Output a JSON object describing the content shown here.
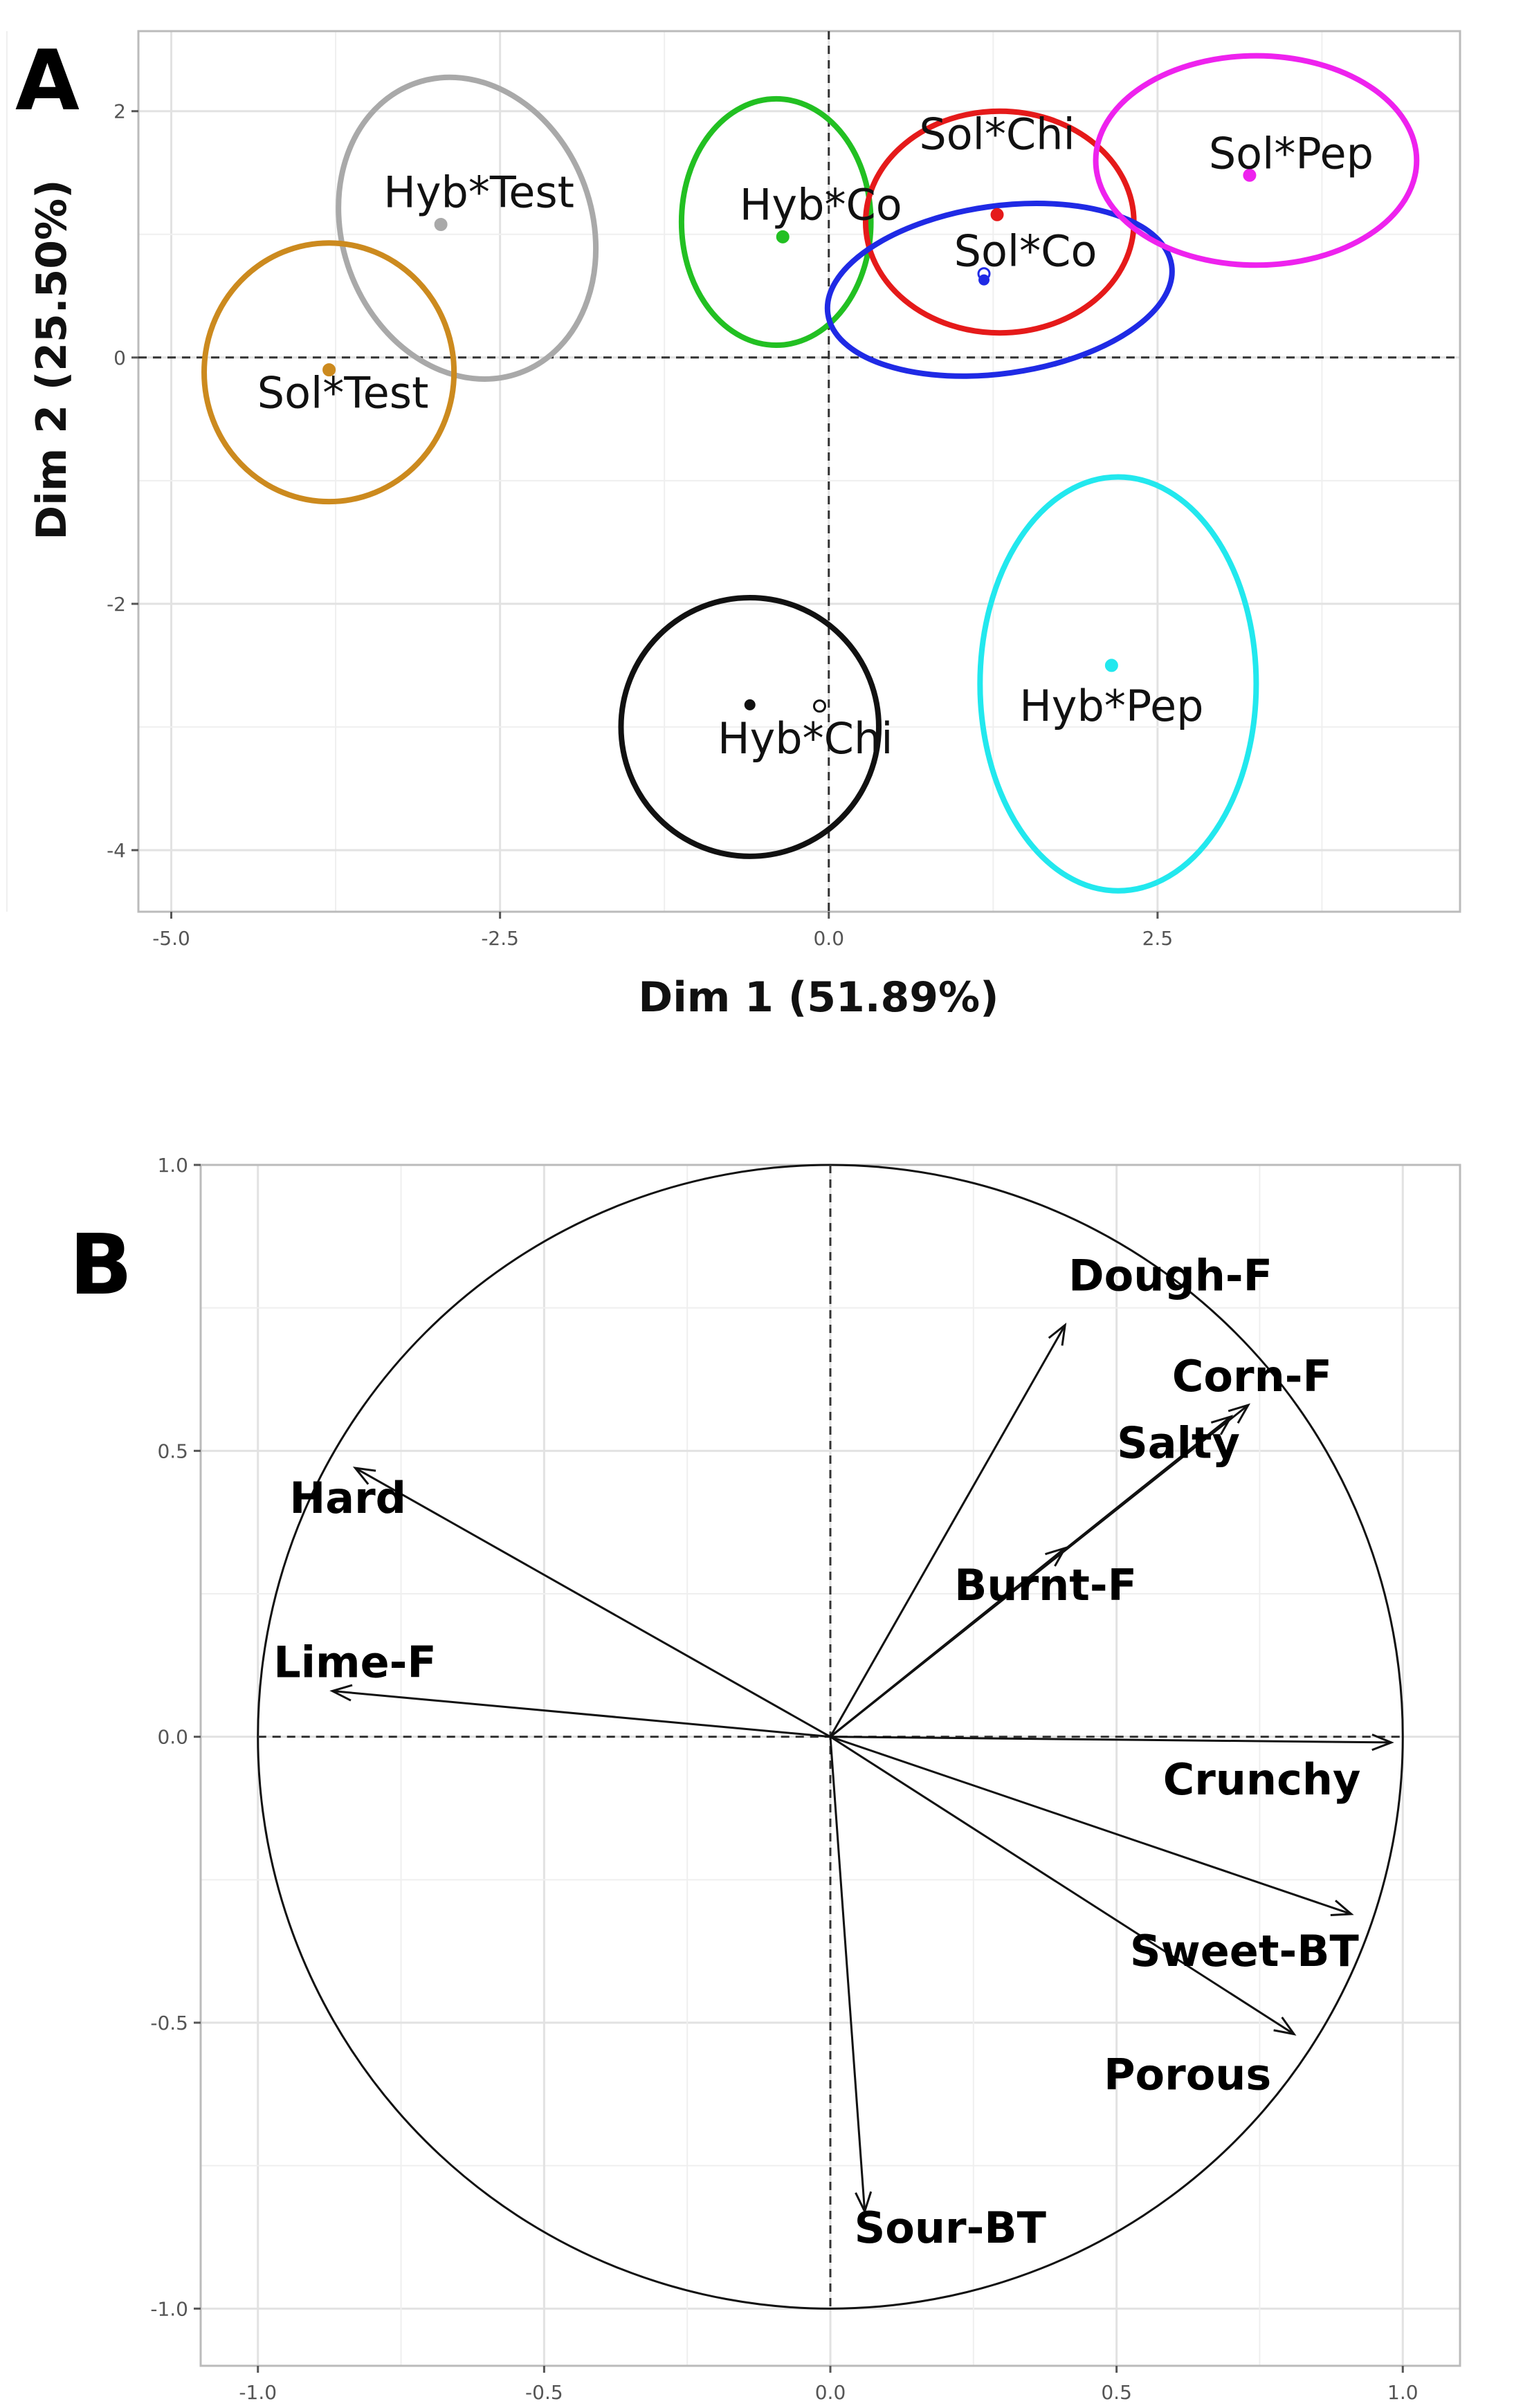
{
  "chart_data": [
    {
      "panel": "A",
      "type": "scatter",
      "title": "",
      "xlabel": "Dim 1 (51.89%)",
      "ylabel": "Dim 2 (25.50%)",
      "xlim": [
        -5.25,
        4.8
      ],
      "ylim": [
        -4.5,
        2.65
      ],
      "xticks": [
        -5.0,
        -2.5,
        0.0,
        2.5
      ],
      "xtick_labels": [
        "-5.0",
        "-2.5",
        "0.0",
        "2.5"
      ],
      "yticks": [
        -4,
        -2,
        0,
        2
      ],
      "ytick_labels": [
        "-4",
        "-2",
        "0",
        "2"
      ],
      "grid": true,
      "reference_lines": {
        "x": 0,
        "y": 0
      },
      "groups": [
        {
          "name": "Hyb*Test",
          "color": "#A9A9A9",
          "x": -2.95,
          "y": 1.08,
          "open_x": -2.95,
          "open_y": 1.08,
          "ellipse": {
            "cx": -2.75,
            "cy": 1.05,
            "rx": 0.95,
            "ry": 1.25,
            "angle": 20
          }
        },
        {
          "name": "Sol*Test",
          "color": "#CC8A1E",
          "x": -3.8,
          "y": -0.1,
          "open_x": -3.8,
          "open_y": -0.1,
          "ellipse": {
            "cx": -3.8,
            "cy": -0.12,
            "rx": 0.95,
            "ry": 1.05,
            "angle": 0
          }
        },
        {
          "name": "Hyb*Co",
          "color": "#22C022",
          "x": -0.35,
          "y": 0.98,
          "open_x": -0.35,
          "open_y": 0.98,
          "ellipse": {
            "cx": -0.4,
            "cy": 1.1,
            "rx": 0.72,
            "ry": 1.0,
            "angle": 0
          }
        },
        {
          "name": "Sol*Chi",
          "color": "#E51A1A",
          "x": 1.28,
          "y": 1.16,
          "open_x": 1.28,
          "open_y": 1.16,
          "ellipse": {
            "cx": 1.3,
            "cy": 1.1,
            "rx": 1.02,
            "ry": 0.9,
            "angle": 0
          }
        },
        {
          "name": "Sol*Co",
          "color": "#1F2AE5",
          "x": 1.18,
          "y": 0.63,
          "open_x": 1.18,
          "open_y": 0.68,
          "ellipse": {
            "cx": 1.3,
            "cy": 0.55,
            "rx": 1.32,
            "ry": 0.68,
            "angle": 8
          }
        },
        {
          "name": "Sol*Pep",
          "color": "#EE22EE",
          "x": 3.2,
          "y": 1.48,
          "open_x": 3.2,
          "open_y": 1.48,
          "ellipse": {
            "cx": 3.25,
            "cy": 1.6,
            "rx": 1.22,
            "ry": 0.85,
            "angle": 0
          }
        },
        {
          "name": "Hyb*Chi",
          "color": "#111111",
          "x": -0.6,
          "y": -2.82,
          "open_x": -0.07,
          "open_y": -2.83,
          "ellipse": {
            "cx": -0.6,
            "cy": -3.0,
            "rx": 0.98,
            "ry": 1.05,
            "angle": 0
          }
        },
        {
          "name": "Hyb*Pep",
          "color": "#22E8EE",
          "x": 2.15,
          "y": -2.5,
          "open_x": 2.15,
          "open_y": -2.5,
          "ellipse": {
            "cx": 2.2,
            "cy": -2.65,
            "rx": 1.05,
            "ry": 1.68,
            "angle": 0
          }
        }
      ]
    },
    {
      "panel": "B",
      "type": "scatter",
      "title": "",
      "xlabel": "",
      "ylabel": "",
      "xlim": [
        -1.1,
        1.1
      ],
      "ylim": [
        -1.1,
        1.0
      ],
      "xticks": [
        -1.0,
        -0.5,
        0.0,
        0.5,
        1.0
      ],
      "xtick_labels": [
        "-1.0",
        "-0.5",
        "0.0",
        "0.5",
        "1.0"
      ],
      "yticks": [
        -1.0,
        -0.5,
        0.0,
        0.5,
        1.0
      ],
      "ytick_labels": [
        "-1.0",
        "-0.5",
        "0.0",
        "0.5",
        "1.0"
      ],
      "grid": true,
      "unit_circle": true,
      "reference_lines": {
        "x": 0,
        "y": 0
      },
      "variables": [
        {
          "name": "Dough-F",
          "x": 0.41,
          "y": 0.72
        },
        {
          "name": "Corn-F",
          "x": 0.73,
          "y": 0.58
        },
        {
          "name": "Salty",
          "x": 0.7,
          "y": 0.56
        },
        {
          "name": "Burnt-F",
          "x": 0.41,
          "y": 0.33
        },
        {
          "name": "Hard",
          "x": -0.83,
          "y": 0.47
        },
        {
          "name": "Lime-F",
          "x": -0.87,
          "y": 0.08
        },
        {
          "name": "Crunchy",
          "x": 0.98,
          "y": -0.01
        },
        {
          "name": "Sweet-BT",
          "x": 0.91,
          "y": -0.31
        },
        {
          "name": "Porous",
          "x": 0.81,
          "y": -0.52
        },
        {
          "name": "Sour-BT",
          "x": 0.06,
          "y": -0.83
        }
      ]
    }
  ]
}
